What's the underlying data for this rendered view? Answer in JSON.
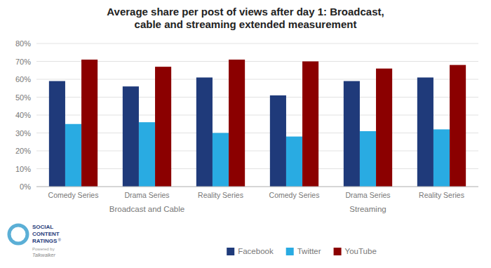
{
  "chart_data": {
    "type": "bar",
    "title": "Average share per post of views after day 1: Broadcast,\ncable and streaming extended measurement",
    "categories": [
      "Comedy Series",
      "Drama Series",
      "Reality Series",
      "Comedy Series",
      "Drama Series",
      "Reality Series"
    ],
    "series": [
      {
        "name": "Facebook",
        "color": "#1F3A7A",
        "values": [
          59,
          56,
          61,
          51,
          59,
          61
        ]
      },
      {
        "name": "Twitter",
        "color": "#29ABE2",
        "values": [
          35,
          36,
          30,
          28,
          31,
          32
        ]
      },
      {
        "name": "YouTube",
        "color": "#8B0000",
        "values": [
          71,
          67,
          71,
          70,
          66,
          68
        ]
      }
    ],
    "ylim": [
      0,
      80
    ],
    "yticks": [
      {
        "value": 0,
        "label": "0%"
      },
      {
        "value": 10,
        "label": "10%"
      },
      {
        "value": 20,
        "label": "20%"
      },
      {
        "value": 30,
        "label": "30%"
      },
      {
        "value": 40,
        "label": "40%"
      },
      {
        "value": 50,
        "label": "50%"
      },
      {
        "value": 60,
        "label": "60%"
      },
      {
        "value": 70,
        "label": "70%"
      },
      {
        "value": 80,
        "label": "80%"
      }
    ],
    "grid": true,
    "legend": "bottom",
    "annotations": [
      "Broadcast and Cable",
      "Streaming",
      "SOCIAL",
      "CONTENT",
      "RATINGS",
      "®",
      "Powered by",
      "Talkwalker"
    ]
  }
}
